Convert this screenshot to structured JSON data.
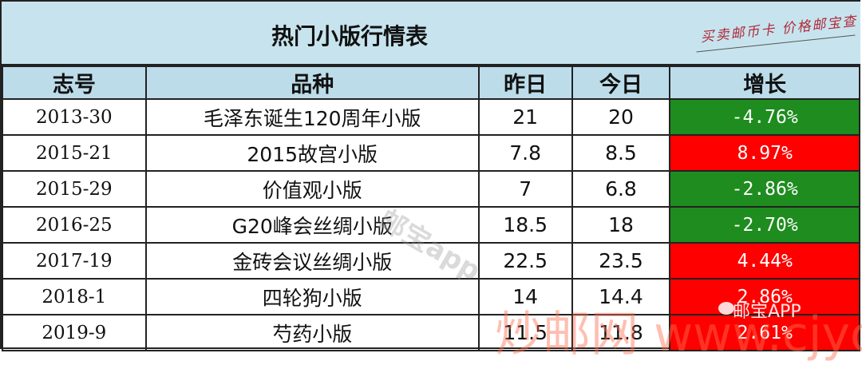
{
  "title": "热门小版行情表",
  "slogan": "买卖邮币卡 价格邮宝查",
  "columns": [
    "志号",
    "品种",
    "昨日",
    "今日",
    "增长"
  ],
  "rows": [
    {
      "code": "2013-30",
      "name": "毛泽东诞生120周年小版",
      "yesterday": "21",
      "today": "20",
      "change": "-4.76%",
      "trend": "down"
    },
    {
      "code": "2015-21",
      "name": "2015故宫小版",
      "yesterday": "7.8",
      "today": "8.5",
      "change": "8.97%",
      "trend": "up"
    },
    {
      "code": "2015-29",
      "name": "价值观小版",
      "yesterday": "7",
      "today": "6.8",
      "change": "-2.86%",
      "trend": "down"
    },
    {
      "code": "2016-25",
      "name": "G20峰会丝绸小版",
      "yesterday": "18.5",
      "today": "18",
      "change": "-2.70%",
      "trend": "down"
    },
    {
      "code": "2017-19",
      "name": "金砖会议丝绸小版",
      "yesterday": "22.5",
      "today": "23.5",
      "change": "4.44%",
      "trend": "up"
    },
    {
      "code": "2018-1",
      "name": "四轮狗小版",
      "yesterday": "14",
      "today": "14.4",
      "change": "2.86%",
      "trend": "up"
    },
    {
      "code": "2019-9",
      "name": "芍药小版",
      "yesterday": "11.5",
      "today": "11.8",
      "change": "2.61%",
      "trend": "up"
    }
  ],
  "colors": {
    "up": "#ff0000",
    "down": "#1e8c1e",
    "header": "#bcdcea",
    "title_bg": "#c7e4ee"
  },
  "watermarks": {
    "site": "炒邮网 www.cjyou.net",
    "diagonal": "邮宝app",
    "wechat": "邮宝APP"
  }
}
